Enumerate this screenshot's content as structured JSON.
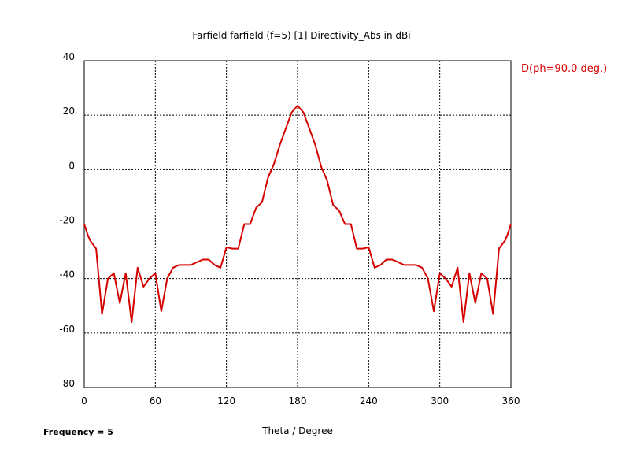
{
  "chart_data": {
    "type": "line",
    "title": "Farfield farfield (f=5) [1] Directivity_Abs in dBi",
    "xlabel": "Theta / Degree",
    "ylabel": "",
    "xlim": [
      0,
      360
    ],
    "ylim": [
      -80,
      40
    ],
    "xticks": [
      0,
      60,
      120,
      180,
      240,
      300,
      360
    ],
    "yticks": [
      40,
      20,
      0,
      -20,
      -40,
      -60,
      -80
    ],
    "grid": true,
    "legend_position": "top-right",
    "footer": "Frequency = 5",
    "series": [
      {
        "name": "D(ph=90.0 deg.)",
        "color": "#d40000",
        "x": [
          0,
          3,
          5,
          10,
          15,
          20,
          25,
          30,
          35,
          40,
          45,
          50,
          55,
          60,
          65,
          70,
          75,
          80,
          85,
          90,
          95,
          100,
          105,
          110,
          115,
          120,
          125,
          130,
          135,
          140,
          145,
          150,
          155,
          160,
          165,
          170,
          175,
          180,
          185,
          190,
          195,
          200,
          205,
          210,
          215,
          220,
          225,
          230,
          235,
          240,
          245,
          250,
          255,
          260,
          265,
          270,
          275,
          280,
          285,
          290,
          295,
          300,
          305,
          310,
          315,
          320,
          325,
          330,
          335,
          340,
          345,
          350,
          355,
          357,
          360
        ],
        "values": [
          -20,
          -24,
          -26,
          -29,
          -53,
          -40,
          -38,
          -49,
          -38,
          -56,
          -36,
          -43,
          -40,
          -38,
          -52,
          -40,
          -36,
          -35,
          -35,
          -35,
          -34,
          -33,
          -33,
          -35,
          -36,
          -28.5,
          -29,
          -29,
          -20,
          -20,
          -14,
          -12,
          -3,
          2,
          9,
          15,
          21,
          23.5,
          21,
          15,
          9,
          1,
          -4,
          -13,
          -15,
          -20,
          -20,
          -29,
          -29,
          -28.5,
          -36,
          -35,
          -33,
          -33,
          -34,
          -35,
          -35,
          -35,
          -36,
          -40,
          -52,
          -38,
          -40,
          -43,
          -36,
          -56,
          -38,
          -49,
          -38,
          -40,
          -53,
          -29,
          -26,
          -24,
          -20
        ]
      }
    ]
  }
}
